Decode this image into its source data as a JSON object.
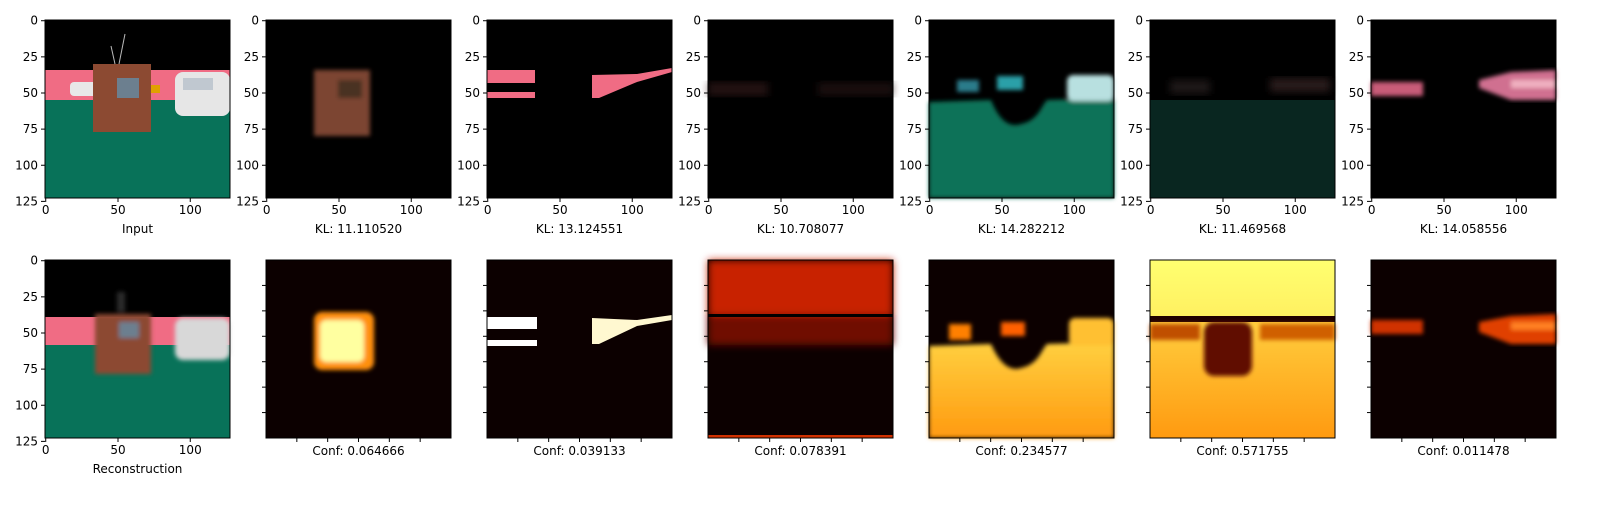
{
  "figure": {
    "top_row_captions": [
      "Input",
      "KL: 11.110520",
      "KL: 13.124551",
      "KL: 10.708077",
      "KL: 14.282212",
      "KL: 11.469568",
      "KL: 14.058556"
    ],
    "bottom_row_captions": [
      "Reconstruction",
      "Conf: 0.064666",
      "Conf: 0.039133",
      "Conf: 0.078391",
      "Conf: 0.234577",
      "Conf: 0.571755",
      "Conf: 0.011478"
    ],
    "x_ticks": [
      "0",
      "50",
      "100"
    ],
    "y_ticks": [
      "0",
      "25",
      "50",
      "75",
      "100",
      "125"
    ],
    "colors": {
      "sky": "#000000",
      "wall_pink": "#f06c84",
      "ground_teal": "#087259",
      "box_brown": "#8c4a32",
      "car_white": "#dcdcdc",
      "heat_low": "#0c0000",
      "heat_mid": "#ff8000",
      "heat_high": "#ffff90"
    }
  }
}
